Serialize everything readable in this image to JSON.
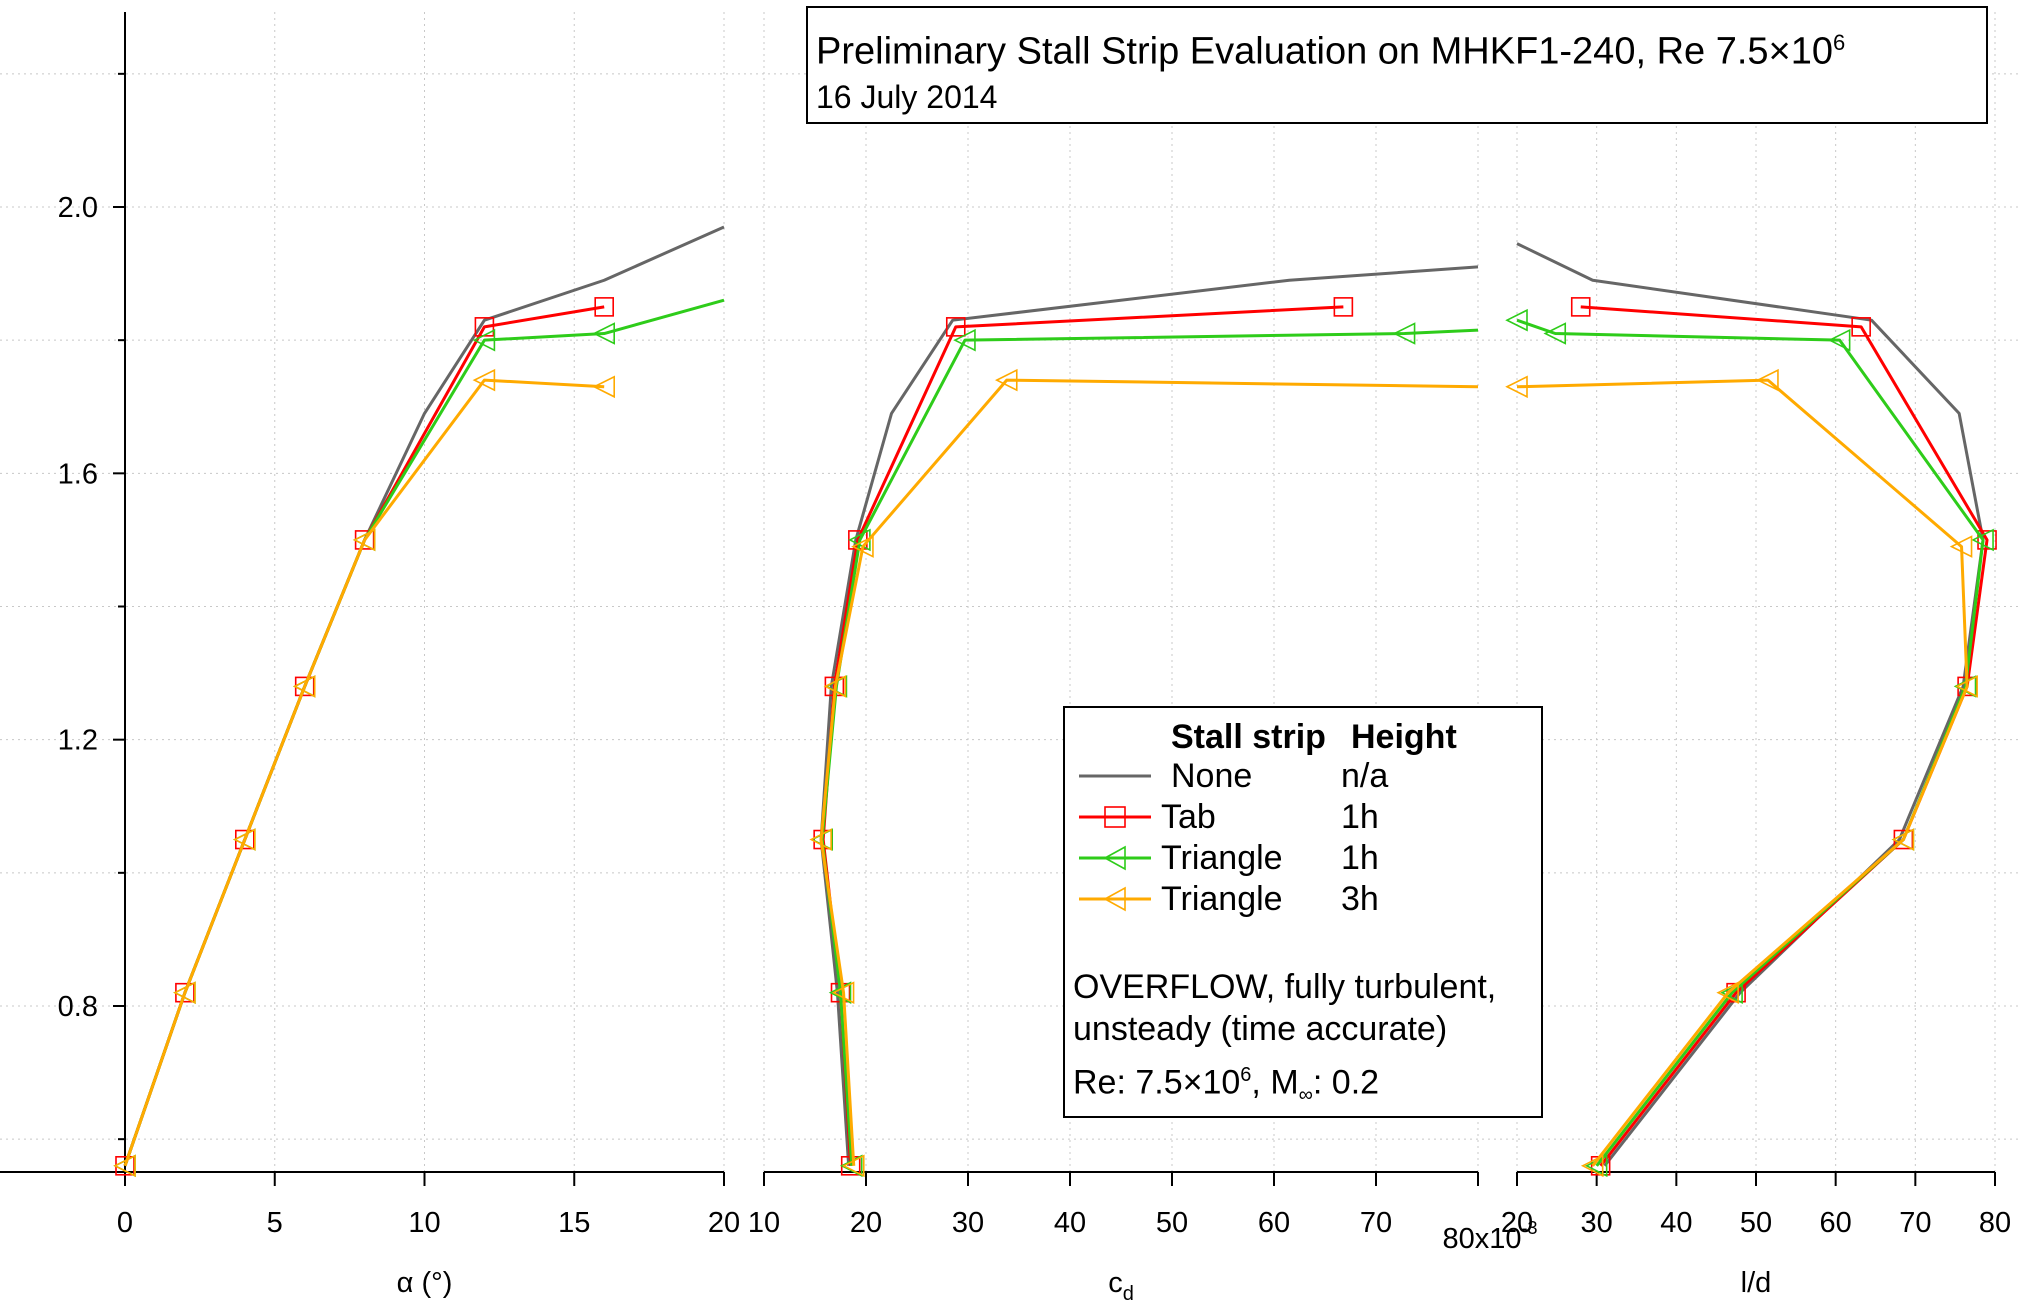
{
  "title": {
    "main": "Preliminary Stall Strip Evaluation on MHKF1-240, Re 7.5×10",
    "exponent": "6",
    "date": "16 July 2014"
  },
  "legend": {
    "col1_header": "Stall strip",
    "col2_header": "Height",
    "entries": [
      {
        "name": "None",
        "height": "n/a"
      },
      {
        "name": "Tab",
        "height": "1h"
      },
      {
        "name": "Triangle",
        "height": "1h"
      },
      {
        "name": "Triangle",
        "height": "3h"
      }
    ],
    "note_line1": "OVERFLOW, fully turbulent,",
    "note_line2": "unsteady (time accurate)",
    "note_re_prefix": "Re: 7.5×10",
    "note_re_exp": "6",
    "note_mach_prefix": ", M",
    "note_mach_sub": "∞",
    "note_mach_value": ": 0.2"
  },
  "colors": {
    "None": "#666666",
    "Tab_1h": "#ff0000",
    "Triangle_1h": "#2ecc1a",
    "Triangle_3h": "#ffaa00"
  },
  "chart_data": {
    "type": "line",
    "y_axis": {
      "label": "",
      "ylim": [
        0.55,
        2.3
      ],
      "ticks": [
        0.8,
        1.2,
        1.6,
        2.0
      ],
      "tick_labels": [
        "0.8",
        "1.2",
        "1.6",
        "2.0"
      ],
      "minor_ticks": [
        0.6,
        1.0,
        1.4,
        1.8,
        2.2
      ]
    },
    "panels": [
      {
        "id": "alpha",
        "xlabel": "α (°)",
        "xlim": [
          0,
          20
        ],
        "ticks": [
          0,
          5,
          10,
          15,
          20
        ],
        "tick_labels": [
          "0",
          "5",
          "10",
          "15",
          "20"
        ],
        "series": [
          {
            "name": "None",
            "points": [
              [
                0,
                0.56
              ],
              [
                2,
                0.82
              ],
              [
                4,
                1.05
              ],
              [
                6,
                1.28
              ],
              [
                8,
                1.5
              ],
              [
                10,
                1.69
              ],
              [
                12,
                1.83
              ],
              [
                16,
                1.89
              ],
              [
                20,
                1.97
              ]
            ]
          },
          {
            "name": "Tab 1h",
            "points": [
              [
                0,
                0.56
              ],
              [
                2,
                0.82
              ],
              [
                4,
                1.05
              ],
              [
                6,
                1.28
              ],
              [
                8,
                1.5
              ],
              [
                12,
                1.82
              ],
              [
                16,
                1.85
              ]
            ]
          },
          {
            "name": "Triangle 1h",
            "points": [
              [
                0,
                0.56
              ],
              [
                2,
                0.82
              ],
              [
                4,
                1.05
              ],
              [
                6,
                1.28
              ],
              [
                8,
                1.5
              ],
              [
                12,
                1.8
              ],
              [
                16,
                1.81
              ],
              [
                20,
                1.86
              ]
            ]
          },
          {
            "name": "Triangle 3h",
            "points": [
              [
                0,
                0.56
              ],
              [
                2,
                0.82
              ],
              [
                4,
                1.05
              ],
              [
                6,
                1.28
              ],
              [
                8,
                1.5
              ],
              [
                12,
                1.74
              ],
              [
                16,
                1.73
              ]
            ]
          }
        ]
      },
      {
        "id": "cd",
        "xlabel": "c",
        "xlabel_sub": "d",
        "xlim": [
          10,
          80
        ],
        "ticks": [
          10,
          20,
          30,
          40,
          50,
          60,
          70,
          80
        ],
        "tick_labels": [
          "10",
          "20",
          "30",
          "40",
          "50",
          "60",
          "70",
          ""
        ],
        "scale_label": "80x10",
        "scale_exp": "-3",
        "series": [
          {
            "name": "None",
            "points": [
              [
                18.3,
                0.56
              ],
              [
                17.2,
                0.82
              ],
              [
                15.6,
                1.05
              ],
              [
                16.6,
                1.28
              ],
              [
                19.0,
                1.5
              ],
              [
                22.5,
                1.69
              ],
              [
                28.5,
                1.83
              ],
              [
                61.5,
                1.89
              ],
              [
                80.0,
                1.91
              ]
            ]
          },
          {
            "name": "Tab 1h",
            "points": [
              [
                18.5,
                0.56
              ],
              [
                17.5,
                0.82
              ],
              [
                15.8,
                1.05
              ],
              [
                16.9,
                1.28
              ],
              [
                19.2,
                1.5
              ],
              [
                28.8,
                1.82
              ],
              [
                66.8,
                1.85
              ]
            ]
          },
          {
            "name": "Triangle 1h",
            "points": [
              [
                18.6,
                0.56
              ],
              [
                17.5,
                0.82
              ],
              [
                15.7,
                1.05
              ],
              [
                17.1,
                1.28
              ],
              [
                19.4,
                1.5
              ],
              [
                29.7,
                1.8
              ],
              [
                72.8,
                1.81
              ],
              [
                80.0,
                1.815
              ]
            ]
          },
          {
            "name": "Triangle 3h",
            "points": [
              [
                18.8,
                0.56
              ],
              [
                17.8,
                0.82
              ],
              [
                15.6,
                1.05
              ],
              [
                17.0,
                1.28
              ],
              [
                19.7,
                1.49
              ],
              [
                33.8,
                1.74
              ],
              [
                80.0,
                1.73
              ]
            ]
          }
        ]
      },
      {
        "id": "ld",
        "xlabel": "l/d",
        "xlim": [
          20,
          80
        ],
        "ticks": [
          20,
          30,
          40,
          50,
          60,
          70,
          80
        ],
        "tick_labels": [
          "20",
          "30",
          "40",
          "50",
          "60",
          "70",
          "80"
        ],
        "series": [
          {
            "name": "None",
            "points": [
              [
                31.0,
                0.56
              ],
              [
                48.0,
                0.82
              ],
              [
                68.0,
                1.05
              ],
              [
                76.0,
                1.28
              ],
              [
                78.5,
                1.5
              ],
              [
                75.5,
                1.69
              ],
              [
                64.5,
                1.83
              ],
              [
                29.5,
                1.89
              ],
              [
                20.0,
                1.945
              ]
            ]
          },
          {
            "name": "Tab 1h",
            "points": [
              [
                30.5,
                0.56
              ],
              [
                47.5,
                0.82
              ],
              [
                68.5,
                1.05
              ],
              [
                76.5,
                1.28
              ],
              [
                79.0,
                1.5
              ],
              [
                63.2,
                1.82
              ],
              [
                28.0,
                1.85
              ]
            ]
          },
          {
            "name": "Triangle 1h",
            "points": [
              [
                30.0,
                0.56
              ],
              [
                47.0,
                0.82
              ],
              [
                68.5,
                1.05
              ],
              [
                76.3,
                1.28
              ],
              [
                78.5,
                1.5
              ],
              [
                60.5,
                1.8
              ],
              [
                24.8,
                1.81
              ],
              [
                20.0,
                1.83
              ]
            ]
          },
          {
            "name": "Triangle 3h",
            "points": [
              [
                29.5,
                0.56
              ],
              [
                46.5,
                0.82
              ],
              [
                68.5,
                1.05
              ],
              [
                76.5,
                1.28
              ],
              [
                75.8,
                1.49
              ],
              [
                51.5,
                1.74
              ],
              [
                20.0,
                1.73
              ]
            ]
          }
        ]
      }
    ]
  }
}
